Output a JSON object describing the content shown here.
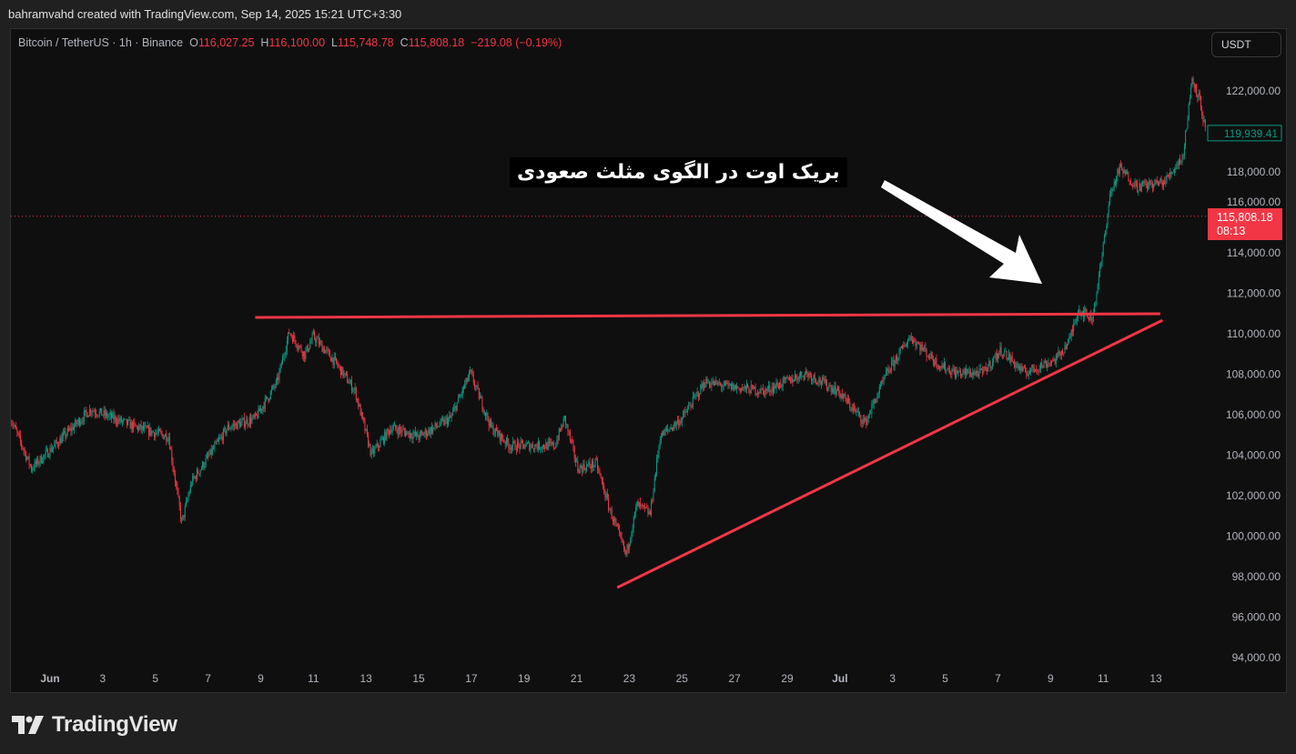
{
  "header": {
    "attribution": "bahramvahd created with TradingView.com, Sep 14, 2025 15:21 UTC+3:30"
  },
  "legend": {
    "symbol": "Bitcoin / TetherUS · 1h · Binance",
    "open_label": "O",
    "open": "116,027.25",
    "high_label": "H",
    "high": "116,100.00",
    "low_label": "L",
    "low": "115,748.78",
    "close_label": "C",
    "close": "115,808.18",
    "change": "−219.08 (−0.19%)"
  },
  "currency_button": "USDT",
  "price_tags": {
    "marker": {
      "price": "119,939.41",
      "value": 119939.41,
      "color": "#089981"
    },
    "last": {
      "price": "115,808.18",
      "value": 115808.18,
      "countdown": "08:13",
      "color": "#f23645"
    }
  },
  "annotation": {
    "text": "بریک اوت در الگوی مثلث صعودی",
    "arrow_color": "#ffffff"
  },
  "branding": {
    "logo_text": "TradingView"
  },
  "colors": {
    "up": "#089981",
    "down": "#f23645",
    "drawing": "#f23645",
    "background": "#0f0f0f"
  },
  "chart_data": {
    "type": "candlestick",
    "interval": "1h",
    "ylim": [
      93000,
      123500
    ],
    "y_ticks": [
      {
        "value": 94000,
        "label": "94,000.00"
      },
      {
        "value": 96000,
        "label": "96,000.00"
      },
      {
        "value": 98000,
        "label": "98,000.00"
      },
      {
        "value": 100000,
        "label": "100,000.00"
      },
      {
        "value": 102000,
        "label": "102,000.00"
      },
      {
        "value": 104000,
        "label": "104,000.00"
      },
      {
        "value": 106000,
        "label": "106,000.00"
      },
      {
        "value": 108000,
        "label": "108,000.00"
      },
      {
        "value": 110000,
        "label": "110,000.00"
      },
      {
        "value": 112000,
        "label": "112,000.00"
      },
      {
        "value": 114000,
        "label": "114,000.00"
      },
      {
        "value": 116000,
        "label": "116,000.00"
      },
      {
        "value": 118000,
        "label": "118,000.00"
      },
      {
        "value": 122000,
        "label": "122,000.00"
      }
    ],
    "x_ticks": [
      {
        "date": "2025-06-01",
        "label": "Jun"
      },
      {
        "date": "2025-06-03",
        "label": "3"
      },
      {
        "date": "2025-06-05",
        "label": "5"
      },
      {
        "date": "2025-06-07",
        "label": "7"
      },
      {
        "date": "2025-06-09",
        "label": "9"
      },
      {
        "date": "2025-06-11",
        "label": "11"
      },
      {
        "date": "2025-06-13",
        "label": "13"
      },
      {
        "date": "2025-06-15",
        "label": "15"
      },
      {
        "date": "2025-06-17",
        "label": "17"
      },
      {
        "date": "2025-06-19",
        "label": "19"
      },
      {
        "date": "2025-06-21",
        "label": "21"
      },
      {
        "date": "2025-06-23",
        "label": "23"
      },
      {
        "date": "2025-06-25",
        "label": "25"
      },
      {
        "date": "2025-06-27",
        "label": "27"
      },
      {
        "date": "2025-06-29",
        "label": "29"
      },
      {
        "date": "2025-07-01",
        "label": "Jul"
      },
      {
        "date": "2025-07-03",
        "label": "3"
      },
      {
        "date": "2025-07-05",
        "label": "5"
      },
      {
        "date": "2025-07-07",
        "label": "7"
      },
      {
        "date": "2025-07-09",
        "label": "9"
      },
      {
        "date": "2025-07-11",
        "label": "11"
      },
      {
        "date": "2025-07-13",
        "label": "13"
      }
    ],
    "price_path": [
      [
        "2025-05-30T12:00",
        105820
      ],
      [
        "2025-05-31T07:00",
        103350
      ],
      [
        "2025-06-01T04:00",
        104470
      ],
      [
        "2025-06-02T13:00",
        106270
      ],
      [
        "2025-06-04T07:00",
        105370
      ],
      [
        "2025-06-05T12:00",
        104920
      ],
      [
        "2025-06-06T00:00",
        100650
      ],
      [
        "2025-06-06T09:00",
        102670
      ],
      [
        "2025-06-07T18:00",
        105370
      ],
      [
        "2025-06-08T19:00",
        105820
      ],
      [
        "2025-06-09T15:00",
        107620
      ],
      [
        "2025-06-10T02:00",
        110090
      ],
      [
        "2025-06-10T16:00",
        108970
      ],
      [
        "2025-06-11T00:00",
        109870
      ],
      [
        "2025-06-11T21:00",
        108520
      ],
      [
        "2025-06-12T14:00",
        107170
      ],
      [
        "2025-06-13T05:00",
        104020
      ],
      [
        "2025-06-13T23:00",
        105370
      ],
      [
        "2025-06-15T00:00",
        104920
      ],
      [
        "2025-06-16T05:00",
        105820
      ],
      [
        "2025-06-16T23:00",
        108070
      ],
      [
        "2025-06-17T18:00",
        105370
      ],
      [
        "2025-06-18T11:00",
        104470
      ],
      [
        "2025-06-20T04:00",
        104470
      ],
      [
        "2025-06-20T13:00",
        105820
      ],
      [
        "2025-06-21T01:00",
        103350
      ],
      [
        "2025-06-21T18:00",
        103570
      ],
      [
        "2025-06-22T06:00",
        101330
      ],
      [
        "2025-06-22T21:00",
        99080
      ],
      [
        "2025-06-23T07:00",
        101550
      ],
      [
        "2025-06-23T19:00",
        101100
      ],
      [
        "2025-06-24T04:00",
        104920
      ],
      [
        "2025-06-25T00:00",
        105820
      ],
      [
        "2025-06-25T21:00",
        107620
      ],
      [
        "2025-06-26T18:00",
        107390
      ],
      [
        "2025-06-28T03:00",
        107170
      ],
      [
        "2025-06-29T17:00",
        108070
      ],
      [
        "2025-06-30T22:00",
        107170
      ],
      [
        "2025-07-01T23:00",
        105600
      ],
      [
        "2025-07-02T19:00",
        108070
      ],
      [
        "2025-07-03T16:00",
        109870
      ],
      [
        "2025-07-04T17:00",
        108520
      ],
      [
        "2025-07-05T09:00",
        108070
      ],
      [
        "2025-07-06T10:00",
        108070
      ],
      [
        "2025-07-07T03:00",
        109200
      ],
      [
        "2025-07-08T00:00",
        108070
      ],
      [
        "2025-07-09T05:00",
        108750
      ],
      [
        "2025-07-09T17:00",
        109640
      ],
      [
        "2025-07-10T01:00",
        111210
      ],
      [
        "2025-07-10T14:00",
        110760
      ],
      [
        "2025-07-10T22:00",
        113460
      ],
      [
        "2025-07-11T06:00",
        116830
      ],
      [
        "2025-07-11T15:00",
        118180
      ],
      [
        "2025-07-12T07:00",
        117280
      ],
      [
        "2025-07-13T08:00",
        117500
      ],
      [
        "2025-07-14T01:00",
        118850
      ],
      [
        "2025-07-14T09:00",
        122670
      ],
      [
        "2025-07-14T16:00",
        121550
      ],
      [
        "2025-07-14T22:00",
        119750
      ]
    ],
    "drawings": {
      "resistance": [
        [
          "2025-06-08T19:00",
          110810
        ],
        [
          "2025-07-13T04:00",
          110990
        ]
      ],
      "support_trendline": [
        [
          "2025-06-22T13:00",
          97460
        ],
        [
          "2025-07-13T06:00",
          110670
        ]
      ]
    }
  }
}
